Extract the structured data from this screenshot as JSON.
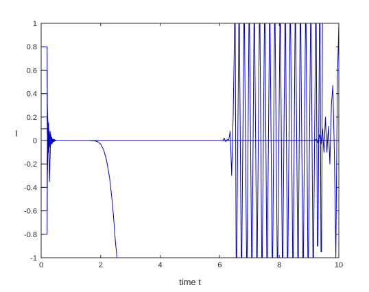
{
  "chart_data": {
    "type": "line",
    "title": "",
    "xlabel": "time t",
    "ylabel": "I",
    "xlim": [
      0,
      10
    ],
    "ylim": [
      -1,
      1
    ],
    "xticks": [
      0,
      2,
      4,
      6,
      8,
      10
    ],
    "xtick_labels": [
      "0",
      "2",
      "4",
      "6",
      "8",
      "10"
    ],
    "yticks": [
      -1,
      -0.8,
      -0.6,
      -0.4,
      -0.2,
      0,
      0.2,
      0.4,
      0.6,
      0.8,
      1
    ],
    "ytick_labels": [
      "-1",
      "-0.8",
      "-0.6",
      "-0.4",
      "-0.2",
      "0",
      "0.2",
      "0.4",
      "0.6",
      "0.8",
      "1"
    ],
    "grid": false,
    "legend": "none",
    "line_color": "#0000cc",
    "series": [
      {
        "x": [
          0,
          0.2,
          0.21,
          0.25,
          0.3,
          0.35,
          0.4,
          0.5,
          0.6,
          0.8,
          10
        ],
        "y": [
          0.8,
          0.8,
          0.3,
          -0.1,
          0.08,
          -0.03,
          0.01,
          0,
          0,
          0,
          0
        ]
      },
      {
        "x": [
          0,
          0.2,
          0.21,
          0.25,
          0.3,
          0.35,
          0.4,
          0.5,
          0.6,
          0.8,
          10
        ],
        "y": [
          -0.8,
          -0.8,
          -0.3,
          0.12,
          -0.06,
          0.03,
          -0.01,
          0,
          0,
          0,
          0
        ]
      },
      {
        "x": [
          0,
          0.2,
          0.21,
          0.26,
          0.3,
          0.35,
          0.4,
          0.5,
          0.7,
          10
        ],
        "y": [
          0.6,
          0.6,
          0.25,
          -0.06,
          0.05,
          -0.02,
          0.01,
          0,
          0,
          0
        ]
      },
      {
        "x": [
          0,
          0.2,
          0.21,
          0.26,
          0.3,
          0.35,
          0.4,
          0.5,
          0.7,
          10
        ],
        "y": [
          -0.6,
          -0.6,
          -0.2,
          0.05,
          -0.04,
          0.02,
          0,
          0,
          0,
          0
        ]
      },
      {
        "x": [
          0,
          0.2,
          0.21,
          0.25,
          0.3,
          0.36,
          0.42,
          0.5,
          0.7,
          10
        ],
        "y": [
          0.4,
          0.4,
          0.1,
          -0.1,
          0.04,
          -0.02,
          0.01,
          0,
          0,
          0
        ]
      },
      {
        "x": [
          0,
          0.2,
          0.21,
          0.25,
          0.28,
          0.32,
          0.36,
          0.42,
          0.5,
          0.7,
          10
        ],
        "y": [
          -0.4,
          -0.4,
          0.05,
          0.15,
          -0.35,
          0.05,
          -0.03,
          0.01,
          0,
          0,
          0
        ]
      },
      {
        "x": [
          0,
          0.2,
          0.21,
          0.26,
          0.3,
          0.35,
          0.4,
          0.5,
          0.7,
          10
        ],
        "y": [
          0.2,
          0.2,
          0.05,
          -0.04,
          0.03,
          -0.01,
          0,
          0,
          0,
          0
        ]
      },
      {
        "x": [
          0,
          0.2,
          0.21,
          0.26,
          0.3,
          0.35,
          0.4,
          0.5,
          0.7,
          10
        ],
        "y": [
          -0.2,
          -0.2,
          -0.05,
          0.04,
          -0.03,
          0.01,
          0,
          0,
          0,
          0
        ]
      },
      {
        "x": [
          0,
          0.2,
          0.21,
          0.25,
          0.3,
          0.34,
          0.38,
          0.45,
          0.6,
          1.6,
          1.8,
          1.9,
          2.0,
          2.1,
          2.2,
          2.3,
          2.4,
          2.5,
          2.55
        ],
        "y": [
          0.1,
          0.1,
          0.05,
          0.03,
          -0.02,
          0.02,
          -0.01,
          0,
          0,
          0,
          -0.003,
          -0.01,
          -0.03,
          -0.08,
          -0.17,
          -0.32,
          -0.55,
          -0.88,
          -1
        ]
      },
      {
        "x": [
          0,
          6.0,
          6.1,
          6.15,
          6.2,
          6.25,
          6.3,
          6.35,
          6.4,
          6.45,
          6.5,
          6.52,
          6.55,
          6.57,
          6.64,
          6.66,
          6.72,
          6.74,
          6.81,
          6.83,
          6.9,
          6.92,
          6.98,
          7.0,
          7.07,
          7.09,
          7.15,
          7.17,
          7.24,
          7.26,
          7.33,
          7.35,
          7.41,
          7.43,
          7.5,
          7.52,
          7.58,
          7.6,
          7.67,
          7.69,
          7.76,
          7.78,
          7.84,
          7.86,
          7.93,
          7.95,
          8.02,
          8.04,
          8.1,
          8.12,
          8.19,
          8.21,
          8.27,
          8.29,
          8.36,
          8.38,
          8.45,
          8.47,
          8.53,
          8.55,
          8.62,
          8.64,
          8.7,
          8.72,
          8.79,
          8.81,
          8.88,
          8.9,
          8.96,
          8.98,
          9.05,
          9.07,
          9.13,
          9.15,
          9.22,
          9.24,
          9.28,
          9.3,
          9.35,
          9.37,
          9.4,
          9.42,
          9.45
        ],
        "y": [
          0,
          0,
          0,
          0.02,
          -0.01,
          0.01,
          0,
          0.08,
          -0.3,
          0.2,
          1,
          1,
          -1,
          -1,
          1,
          1,
          -1,
          -1,
          1,
          1,
          -1,
          -1,
          1,
          1,
          -1,
          -1,
          1,
          1,
          -1,
          -1,
          1,
          1,
          -1,
          -1,
          1,
          1,
          -1,
          -1,
          1,
          1,
          -1,
          -1,
          1,
          1,
          -1,
          -1,
          1,
          1,
          -1,
          -1,
          1,
          1,
          -1,
          -1,
          1,
          1,
          -1,
          -1,
          1,
          1,
          -1,
          -1,
          1,
          1,
          -1,
          -1,
          1,
          1,
          -1,
          -1,
          1,
          1,
          -1,
          -1,
          1,
          1,
          -0.9,
          -0.9,
          1,
          1,
          -0.95,
          -0.95,
          1
        ]
      },
      {
        "x": [
          0,
          9.15,
          9.25,
          9.3,
          9.35,
          9.4,
          9.45,
          9.5,
          9.55,
          9.6,
          9.65,
          9.7,
          9.75,
          9.8,
          9.85,
          9.9,
          9.95,
          10
        ],
        "y": [
          0,
          0,
          0.01,
          -0.02,
          0.05,
          -0.03,
          0.1,
          -0.1,
          0.2,
          -0.1,
          0.12,
          -0.2,
          0.3,
          0.47,
          -0.1,
          -1,
          0.5,
          1
        ]
      }
    ]
  }
}
